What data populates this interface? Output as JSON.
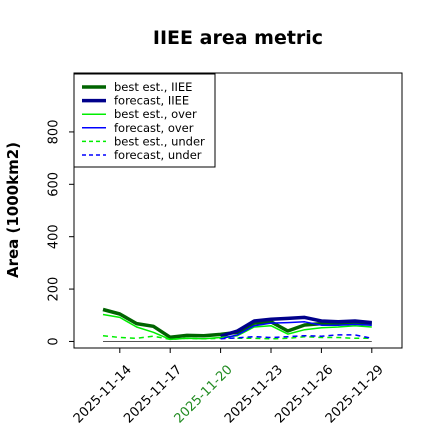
{
  "chart_data": {
    "type": "line",
    "title": "IIEE area metric",
    "xlabel": "",
    "ylabel": "Area (1000km2)",
    "x": [
      "2025-11-13",
      "2025-11-14",
      "2025-11-15",
      "2025-11-16",
      "2025-11-17",
      "2025-11-18",
      "2025-11-19",
      "2025-11-20",
      "2025-11-21",
      "2025-11-22",
      "2025-11-23",
      "2025-11-24",
      "2025-11-25",
      "2025-11-26",
      "2025-11-27",
      "2025-11-28",
      "2025-11-29"
    ],
    "x_ticks": [
      "2025-11-14",
      "2025-11-17",
      "2025-11-20",
      "2025-11-23",
      "2025-11-26",
      "2025-11-29"
    ],
    "highlighted_tick": "2025-11-20",
    "highlight_color": "#228b22",
    "ylim": [
      -25,
      1025
    ],
    "y_ticks": [
      0,
      200,
      400,
      600,
      800
    ],
    "grid": false,
    "legend_position": "top-left",
    "zero_line": true,
    "series": [
      {
        "name": "best est., IIEE",
        "color": "#006400",
        "width": 3.5,
        "dash": "",
        "values": [
          122,
          105,
          68,
          58,
          16,
          23,
          22,
          27,
          35,
          70,
          75,
          40,
          63,
          68,
          70,
          72,
          68
        ]
      },
      {
        "name": "forecast, IIEE",
        "color": "#00008b",
        "width": 3.5,
        "dash": "",
        "values": [
          null,
          null,
          null,
          null,
          null,
          null,
          null,
          20,
          40,
          78,
          85,
          88,
          92,
          78,
          75,
          78,
          72
        ]
      },
      {
        "name": "best est., over",
        "color": "#00ee00",
        "width": 1.5,
        "dash": "",
        "values": [
          103,
          92,
          55,
          35,
          8,
          12,
          10,
          15,
          22,
          55,
          60,
          28,
          45,
          52,
          55,
          60,
          55
        ]
      },
      {
        "name": "forecast, over",
        "color": "#0000ff",
        "width": 1.5,
        "dash": "",
        "values": [
          null,
          null,
          null,
          null,
          null,
          null,
          null,
          10,
          25,
          60,
          70,
          72,
          75,
          62,
          62,
          65,
          62
        ]
      },
      {
        "name": "best est., under",
        "color": "#00ee00",
        "width": 1.5,
        "dash": "5,4",
        "values": [
          22,
          15,
          12,
          20,
          8,
          12,
          10,
          12,
          12,
          12,
          10,
          12,
          18,
          15,
          15,
          12,
          12
        ]
      },
      {
        "name": "forecast, under",
        "color": "#0000ff",
        "width": 1.5,
        "dash": "5,4",
        "values": [
          null,
          null,
          null,
          null,
          null,
          null,
          null,
          10,
          14,
          18,
          15,
          18,
          22,
          20,
          25,
          25,
          12
        ]
      }
    ]
  }
}
